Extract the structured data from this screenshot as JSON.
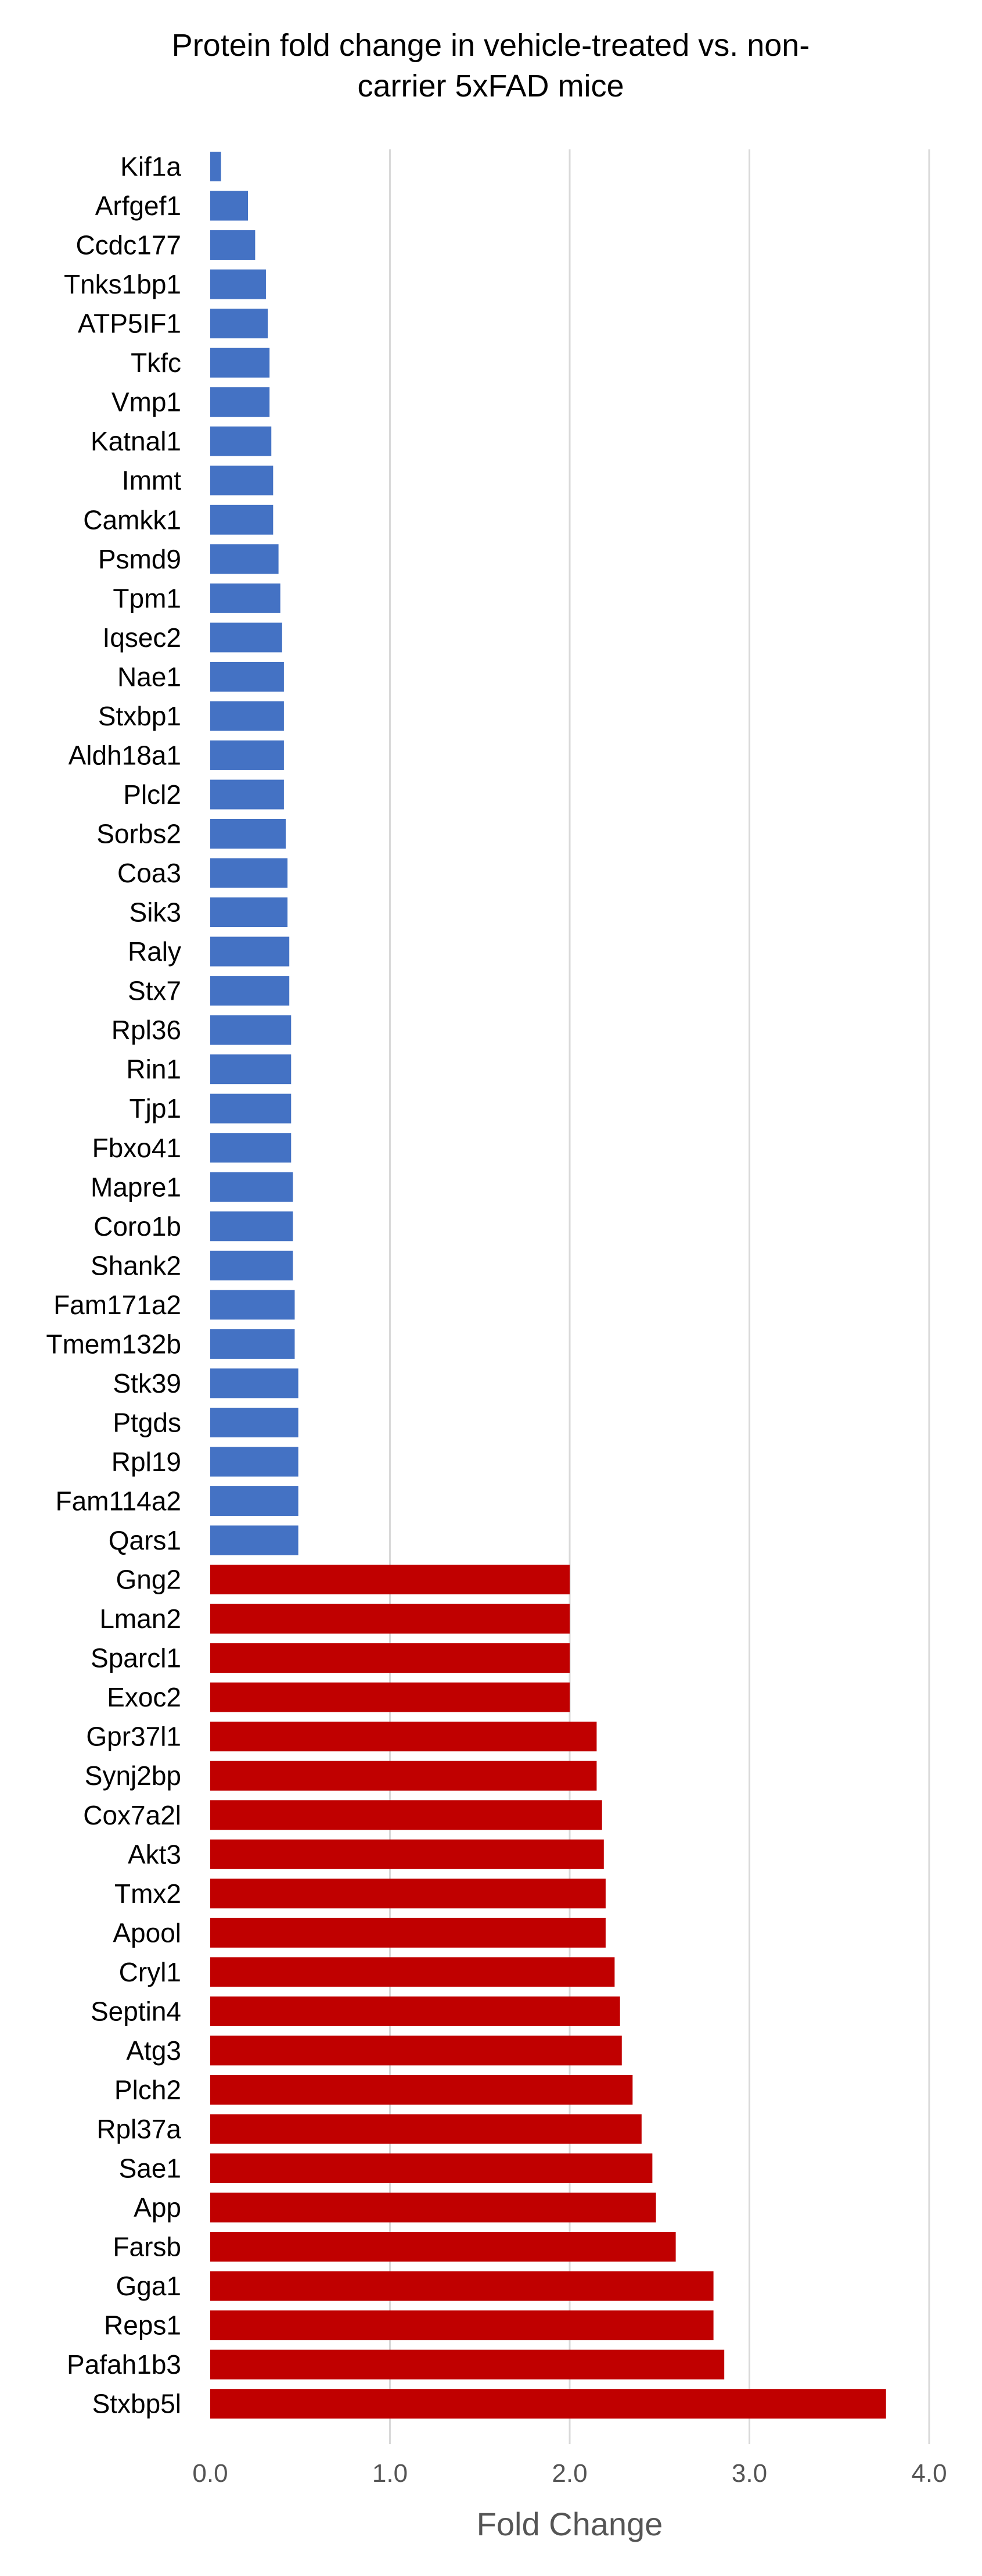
{
  "chart_data": {
    "type": "bar",
    "orientation": "horizontal",
    "title_lines": [
      "Protein fold change in vehicle-treated vs. non-",
      "carrier 5xFAD mice"
    ],
    "xlabel": "Fold Change",
    "ylabel": "",
    "xlim": [
      0,
      4
    ],
    "xticks": [
      0,
      1,
      2,
      3,
      4
    ],
    "xtick_labels": [
      "0.0",
      "1.0",
      "2.0",
      "3.0",
      "4.0"
    ],
    "grid": "vertical",
    "legend": "none",
    "colors": {
      "decreased": "#4472C4",
      "increased": "#C00000",
      "grid": "#d9d9d9",
      "text": "#000000",
      "axis_text": "#555555"
    },
    "categories": [
      "Kif1a",
      "Arfgef1",
      "Ccdc177",
      "Tnks1bp1",
      "ATP5IF1",
      "Tkfc",
      "Vmp1",
      "Katnal1",
      "Immt",
      "Camkk1",
      "Psmd9",
      "Tpm1",
      "Iqsec2",
      "Nae1",
      "Stxbp1",
      "Aldh18a1",
      "Plcl2",
      "Sorbs2",
      "Coa3",
      "Sik3",
      "Raly",
      "Stx7",
      "Rpl36",
      "Rin1",
      "Tjp1",
      "Fbxo41",
      "Mapre1",
      "Coro1b",
      "Shank2",
      "Fam171a2",
      "Tmem132b",
      "Stk39",
      "Ptgds",
      "Rpl19",
      "Fam114a2",
      "Qars1",
      "Gng2",
      "Lman2",
      "Sparcl1",
      "Exoc2",
      "Gpr37l1",
      "Synj2bp",
      "Cox7a2l",
      "Akt3",
      "Tmx2",
      "Apool",
      "Cryl1",
      "Septin4",
      "Atg3",
      "Plch2",
      "Rpl37a",
      "Sae1",
      "App",
      "Farsb",
      "Gga1",
      "Reps1",
      "Pafah1b3",
      "Stxbp5l"
    ],
    "values": [
      0.06,
      0.21,
      0.25,
      0.31,
      0.32,
      0.33,
      0.33,
      0.34,
      0.35,
      0.35,
      0.38,
      0.39,
      0.4,
      0.41,
      0.41,
      0.41,
      0.41,
      0.42,
      0.43,
      0.43,
      0.44,
      0.44,
      0.45,
      0.45,
      0.45,
      0.45,
      0.46,
      0.46,
      0.46,
      0.47,
      0.47,
      0.49,
      0.49,
      0.49,
      0.49,
      0.49,
      2.0,
      2.0,
      2.0,
      2.0,
      2.15,
      2.15,
      2.18,
      2.19,
      2.2,
      2.2,
      2.25,
      2.28,
      2.29,
      2.35,
      2.4,
      2.46,
      2.48,
      2.59,
      2.8,
      2.8,
      2.86,
      3.76
    ],
    "series_color_by_index": {
      "decreased_count": 36
    }
  }
}
